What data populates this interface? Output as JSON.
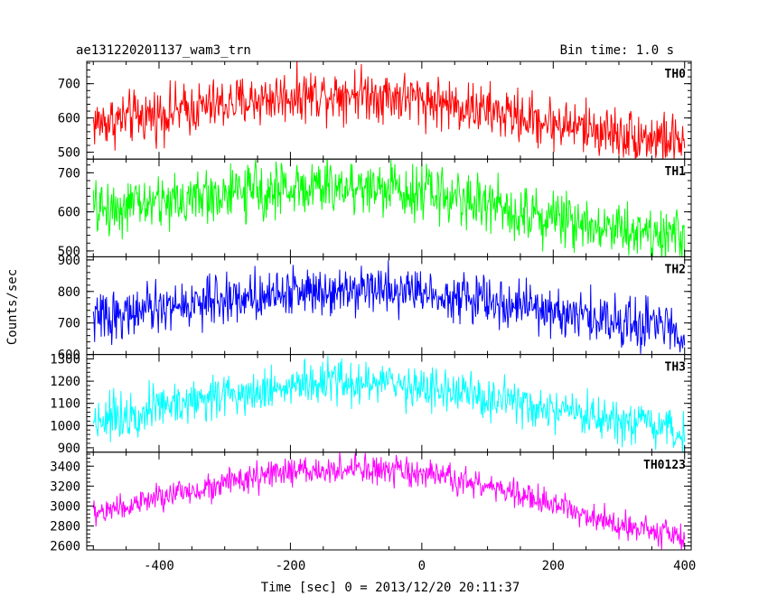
{
  "chart_data": {
    "type": "line",
    "title": "ae131220201137_wam3_trn",
    "subtitle": "Bin time: 1.0 s",
    "xlabel": "Time [sec] 0 = 2013/12/20 20:11:37",
    "ylabel": "Counts/sec",
    "xlim": [
      -510,
      410
    ],
    "xticks": [
      -400,
      -200,
      0,
      200,
      400
    ],
    "grid": false,
    "legend": "none",
    "panels": [
      {
        "label": "TH0",
        "color": "#ff0000",
        "ylim": [
          480,
          765
        ],
        "yticks": [
          500,
          600,
          700
        ],
        "trend": {
          "x": [
            -500,
            -400,
            -300,
            -200,
            -100,
            0,
            100,
            200,
            300,
            400
          ],
          "y": [
            585,
            612,
            640,
            665,
            675,
            655,
            620,
            585,
            555,
            530
          ]
        },
        "noise": 38
      },
      {
        "label": "TH1",
        "color": "#00ff00",
        "ylim": [
          485,
          735
        ],
        "yticks": [
          500,
          600,
          700
        ],
        "trend": {
          "x": [
            -500,
            -400,
            -300,
            -200,
            -100,
            0,
            100,
            200,
            300,
            400
          ],
          "y": [
            605,
            625,
            645,
            660,
            665,
            655,
            620,
            585,
            560,
            535
          ]
        },
        "noise": 35
      },
      {
        "label": "TH2",
        "color": "#0000ff",
        "ylim": [
          600,
          910
        ],
        "yticks": [
          600,
          700,
          800,
          900
        ],
        "trend": {
          "x": [
            -500,
            -400,
            -300,
            -200,
            -100,
            0,
            100,
            200,
            300,
            400
          ],
          "y": [
            715,
            745,
            775,
            800,
            815,
            800,
            770,
            735,
            705,
            680
          ]
        },
        "noise": 38
      },
      {
        "label": "TH3",
        "color": "#00ffff",
        "ylim": [
          880,
          1320
        ],
        "yticks": [
          900,
          1000,
          1100,
          1200,
          1300
        ],
        "trend": {
          "x": [
            -500,
            -400,
            -300,
            -200,
            -100,
            0,
            100,
            200,
            300,
            400
          ],
          "y": [
            1025,
            1085,
            1140,
            1180,
            1195,
            1175,
            1120,
            1060,
            1010,
            965
          ]
        },
        "noise": 50
      },
      {
        "label": "TH0123",
        "color": "#ff00ff",
        "ylim": [
          2560,
          3540
        ],
        "yticks": [
          2600,
          2800,
          3000,
          3200,
          3400
        ],
        "trend": {
          "x": [
            -500,
            -400,
            -300,
            -200,
            -100,
            0,
            100,
            200,
            300,
            400
          ],
          "y": [
            2920,
            3080,
            3230,
            3340,
            3370,
            3320,
            3200,
            3010,
            2830,
            2680
          ]
        },
        "noise": 70
      }
    ]
  }
}
